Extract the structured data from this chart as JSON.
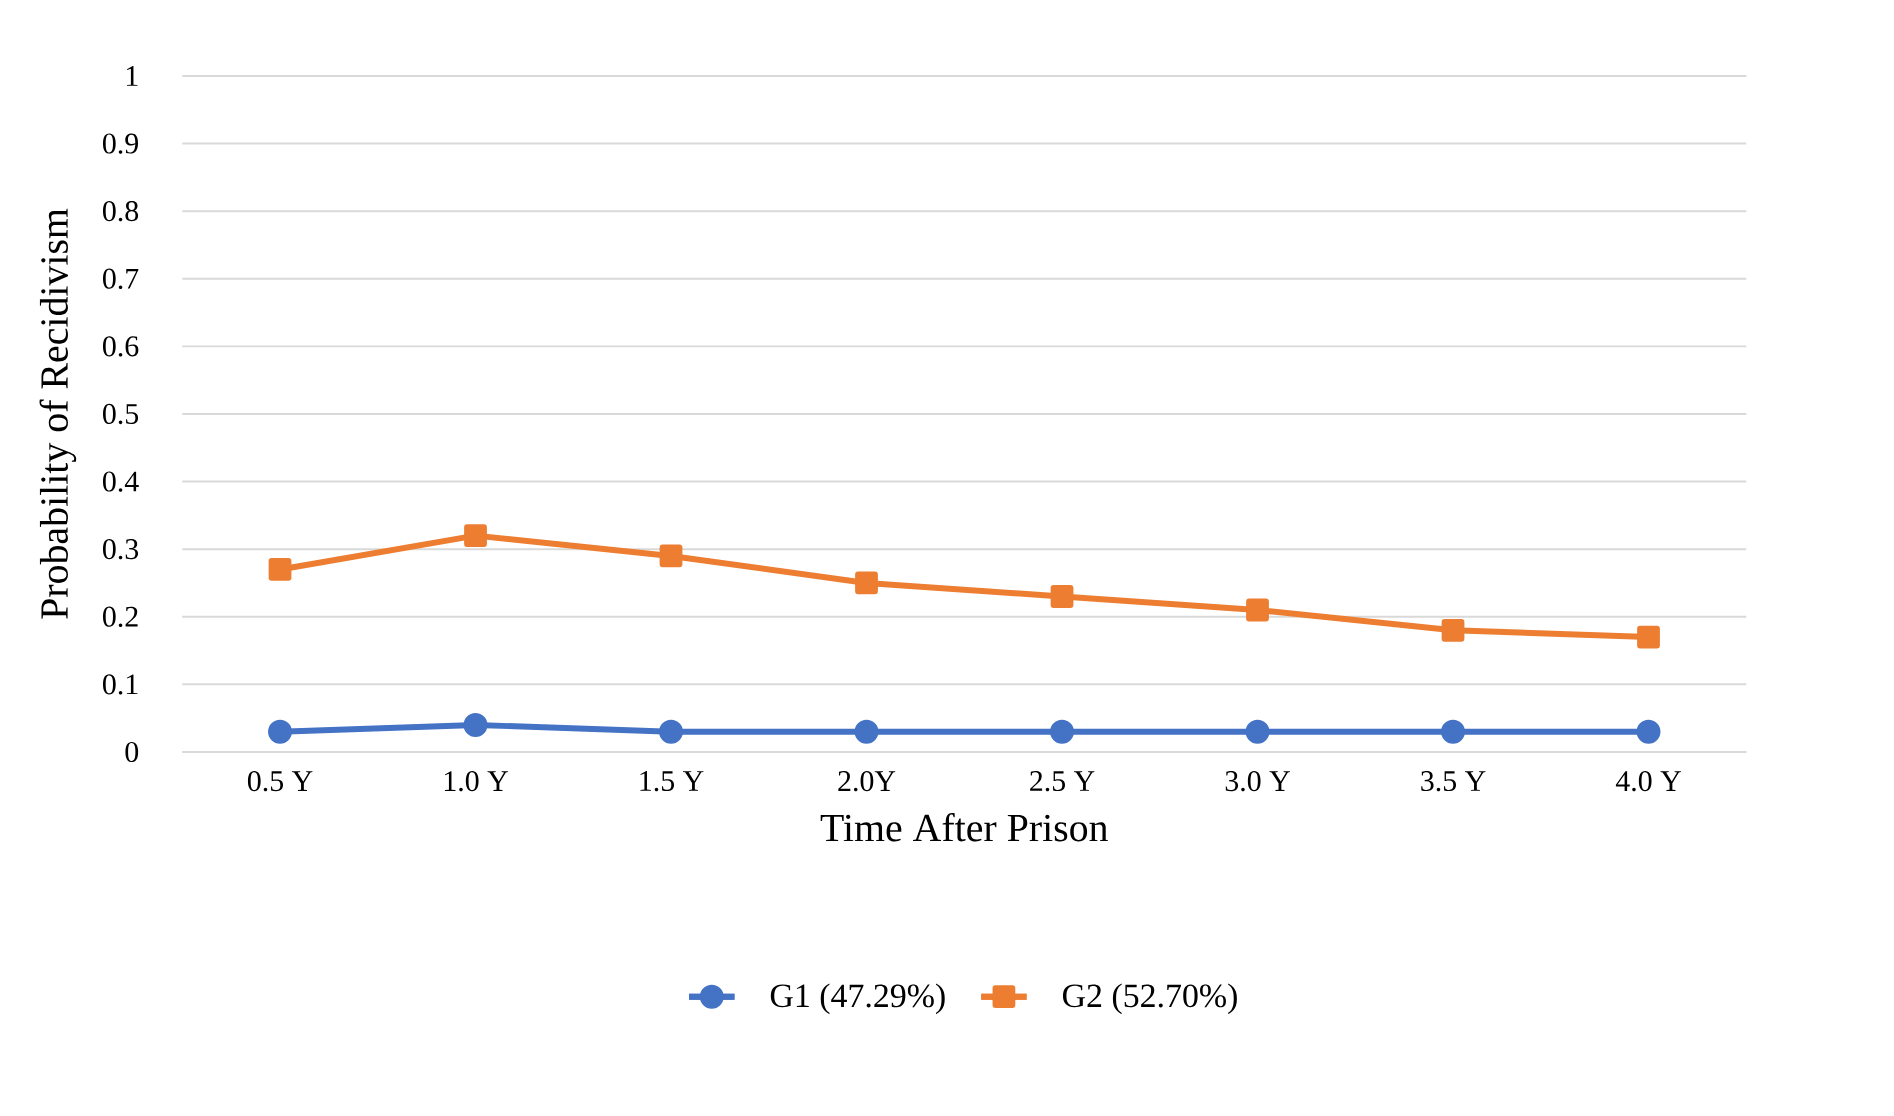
{
  "chart_data": {
    "type": "line",
    "xlabel": "Time After Prison",
    "ylabel": "Probability of Recidivism",
    "categories": [
      "0.5 Y",
      "1.0 Y",
      "1.5 Y",
      "2.0Y",
      "2.5 Y",
      "3.0 Y",
      "3.5 Y",
      "4.0 Y"
    ],
    "series": [
      {
        "name": "G1 (47.29%)",
        "color": "#4472c4",
        "marker": "circle",
        "values": [
          0.03,
          0.04,
          0.03,
          0.03,
          0.03,
          0.03,
          0.03,
          0.03
        ]
      },
      {
        "name": "G2 (52.70%)",
        "color": "#ed7d31",
        "marker": "square",
        "values": [
          0.27,
          0.32,
          0.29,
          0.25,
          0.23,
          0.21,
          0.18,
          0.17
        ]
      }
    ],
    "ylim": [
      0,
      1
    ],
    "yticks": [
      0,
      0.1,
      0.2,
      0.3,
      0.4,
      0.5,
      0.6,
      0.7,
      0.8,
      0.9,
      1
    ],
    "grid": "y",
    "legend": "bottom"
  }
}
